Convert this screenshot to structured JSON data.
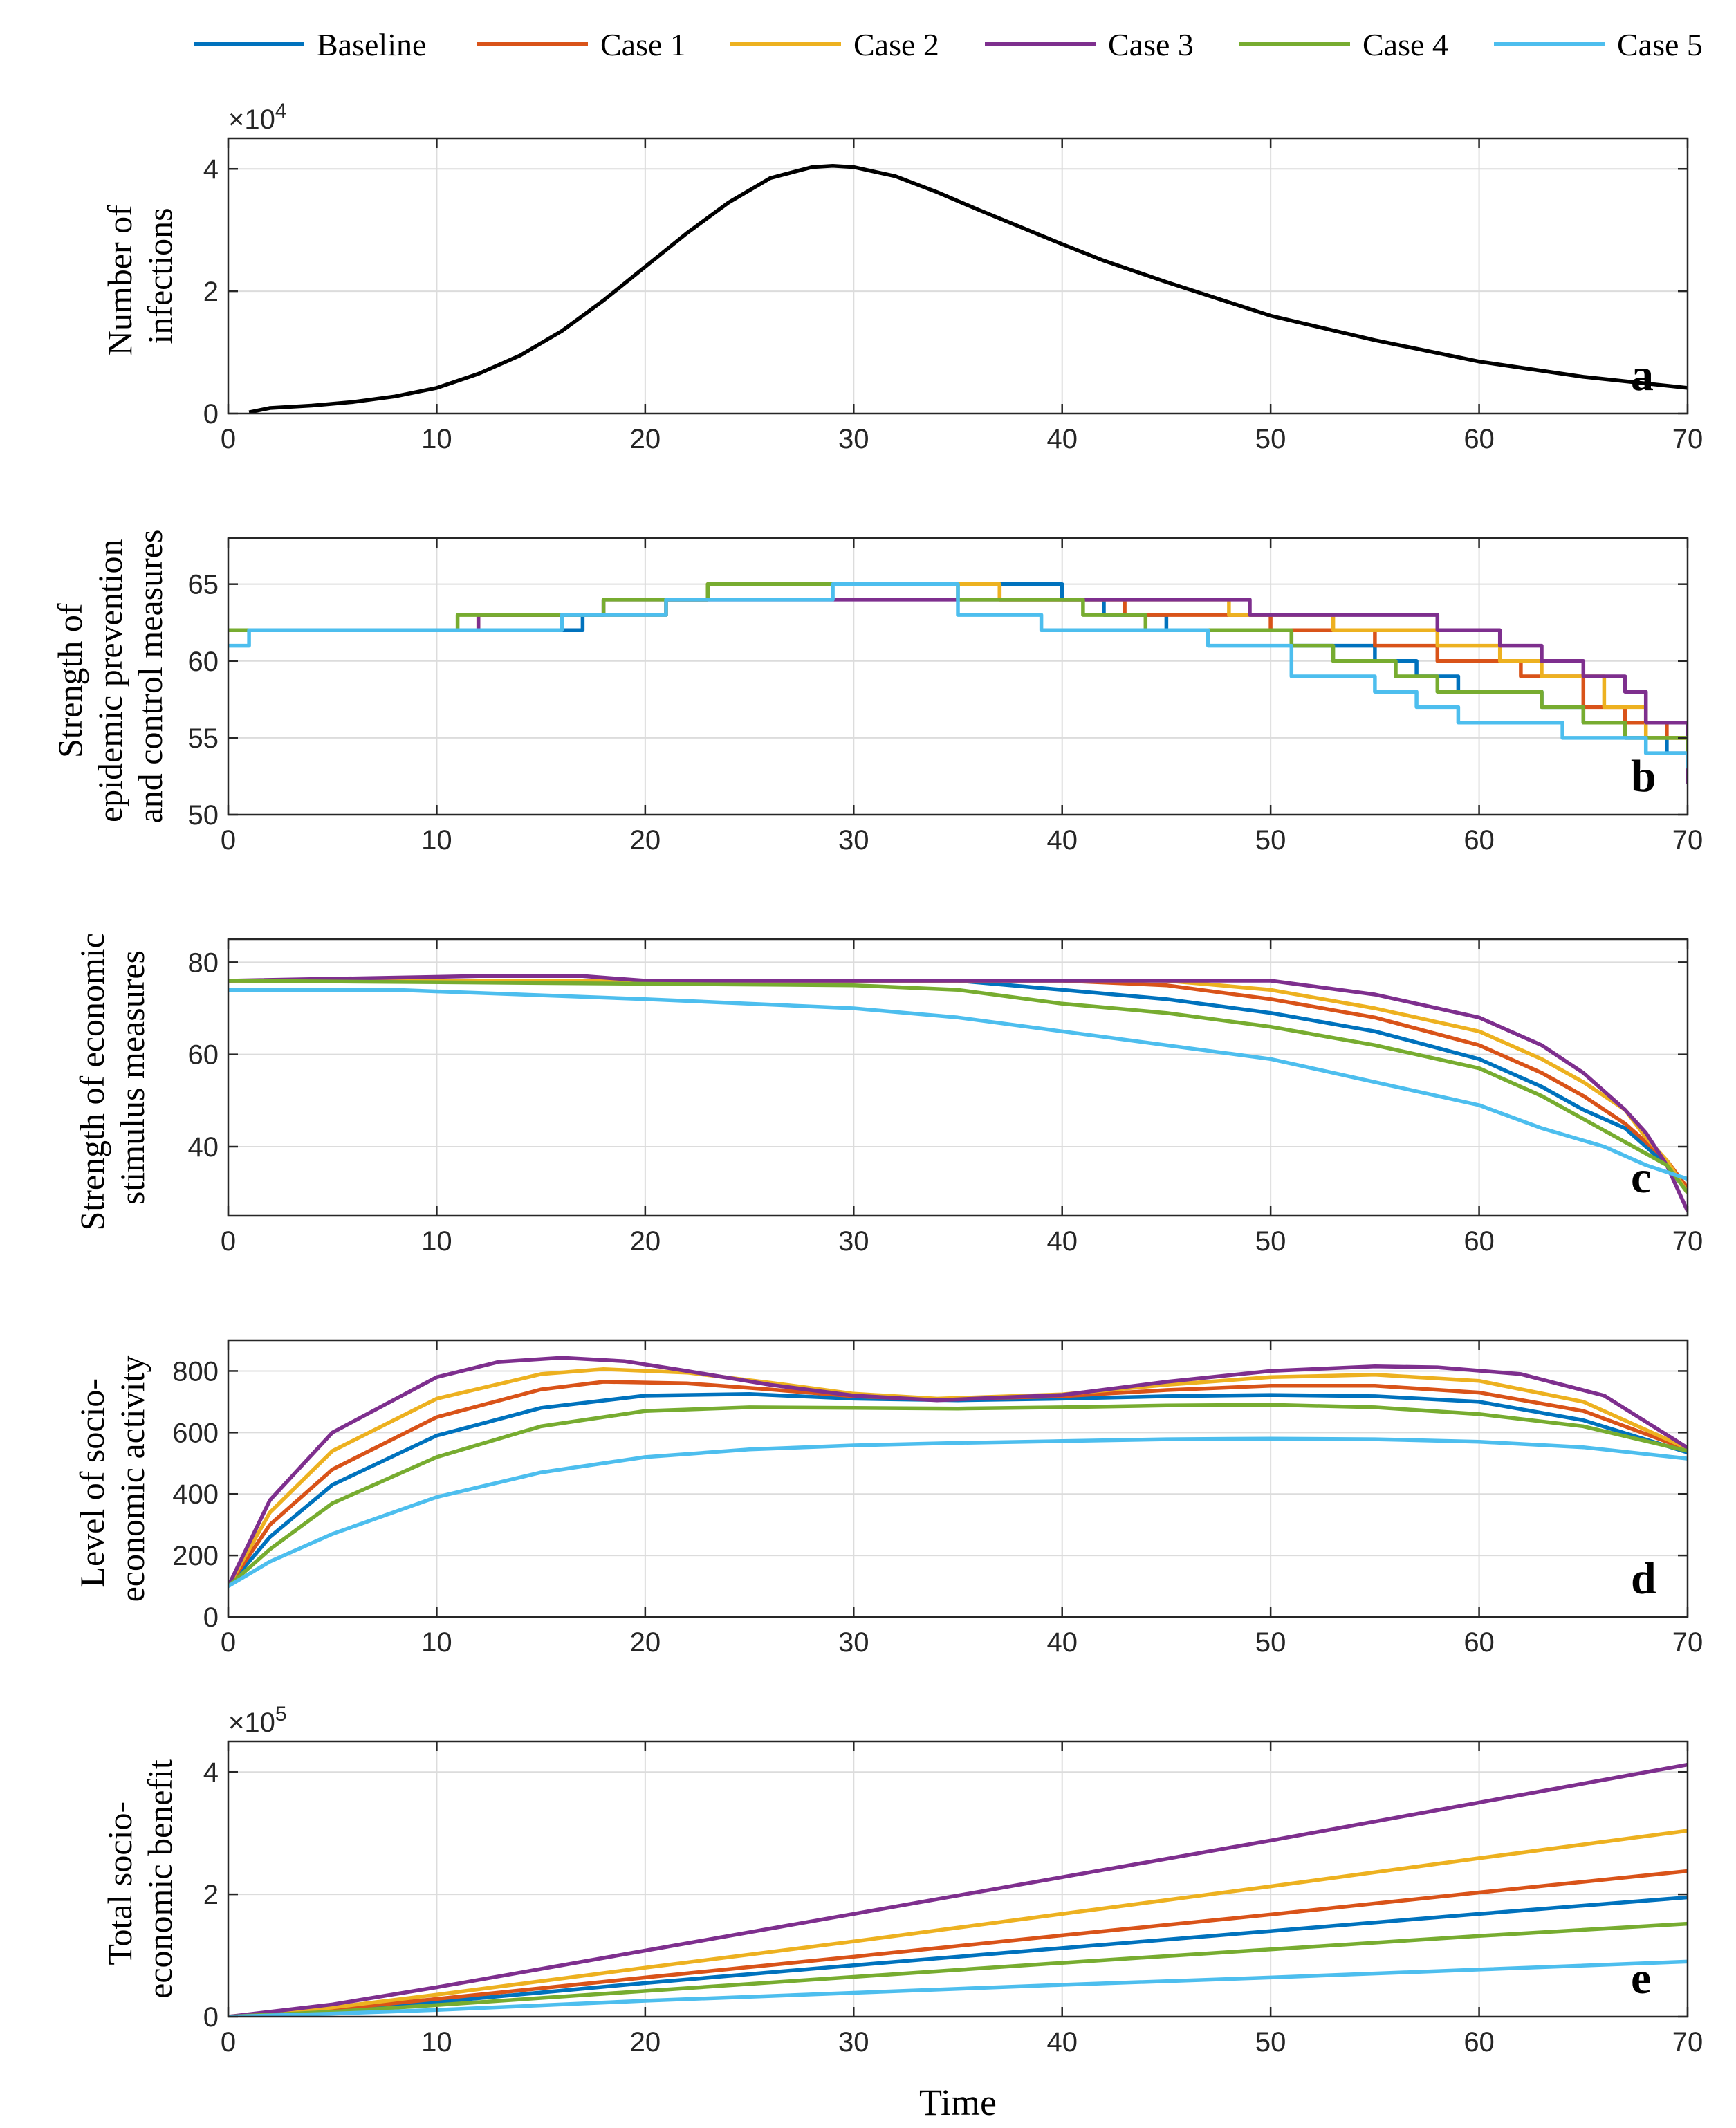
{
  "legend": {
    "entries": [
      {
        "label": "Baseline",
        "color": "#0072BD"
      },
      {
        "label": "Case 1",
        "color": "#D95319"
      },
      {
        "label": "Case 2",
        "color": "#EDB120"
      },
      {
        "label": "Case 3",
        "color": "#7E2F8E"
      },
      {
        "label": "Case 4",
        "color": "#77AC30"
      },
      {
        "label": "Case 5",
        "color": "#4DBEEE"
      }
    ]
  },
  "xlabel": "Time",
  "chart_data": [
    {
      "type": "line",
      "panel_letter": "a",
      "ylabel_lines": [
        "Number of",
        "infections"
      ],
      "exponent_base": "×10",
      "exponent_power": "4",
      "xlim": [
        0,
        70
      ],
      "ylim": [
        0,
        4.5
      ],
      "xticks": [
        0,
        10,
        20,
        30,
        40,
        50,
        60,
        70
      ],
      "yticks": [
        0,
        2,
        4
      ],
      "grid": true,
      "series": [
        {
          "name": "Infections",
          "color": "#000000",
          "x": [
            1,
            2,
            4,
            6,
            8,
            10,
            12,
            14,
            16,
            18,
            20,
            22,
            24,
            26,
            28,
            29,
            30,
            32,
            34,
            36,
            38,
            40,
            42,
            45,
            50,
            55,
            60,
            65,
            70
          ],
          "y": [
            0.02,
            0.09,
            0.13,
            0.19,
            0.28,
            0.42,
            0.65,
            0.95,
            1.35,
            1.85,
            2.4,
            2.95,
            3.45,
            3.85,
            4.03,
            4.05,
            4.03,
            3.88,
            3.62,
            3.33,
            3.05,
            2.77,
            2.5,
            2.15,
            1.6,
            1.2,
            0.85,
            0.6,
            0.42
          ]
        }
      ]
    },
    {
      "type": "line",
      "panel_letter": "b",
      "ylabel_lines": [
        "Strength of",
        "epidemic prevention",
        "and control measures"
      ],
      "xlim": [
        0,
        70
      ],
      "ylim": [
        50,
        68
      ],
      "xticks": [
        0,
        10,
        20,
        30,
        40,
        50,
        60,
        70
      ],
      "yticks": [
        50,
        55,
        60,
        65
      ],
      "grid": true,
      "step": true,
      "series": [
        {
          "name": "Baseline",
          "x": [
            0,
            11,
            17,
            21,
            23,
            38,
            40,
            42,
            45,
            49,
            51,
            55,
            57,
            59,
            61,
            63,
            65,
            67,
            69,
            70
          ],
          "y": [
            62,
            62,
            63,
            64,
            65,
            65,
            64,
            63,
            62,
            62,
            61,
            60,
            59,
            58,
            58,
            57,
            56,
            55,
            54,
            53
          ]
        },
        {
          "name": "Case 1",
          "x": [
            0,
            12,
            17,
            21,
            23,
            37,
            40,
            43,
            47,
            50,
            52,
            55,
            58,
            60,
            62,
            65,
            67,
            69,
            70
          ],
          "y": [
            62,
            63,
            63,
            64,
            65,
            64,
            64,
            63,
            63,
            62,
            62,
            61,
            60,
            60,
            59,
            57,
            56,
            55,
            53
          ]
        },
        {
          "name": "Case 2",
          "x": [
            0,
            12,
            17,
            21,
            23,
            37,
            43,
            48,
            51,
            53,
            55,
            58,
            61,
            63,
            66,
            68,
            70
          ],
          "y": [
            62,
            63,
            63,
            64,
            65,
            64,
            64,
            63,
            63,
            62,
            62,
            61,
            60,
            59,
            57,
            55,
            52
          ]
        },
        {
          "name": "Case 3",
          "x": [
            0,
            12,
            18,
            21,
            23,
            35,
            47,
            49,
            55,
            58,
            61,
            63,
            65,
            67,
            68,
            70
          ],
          "y": [
            62,
            63,
            64,
            64,
            64,
            64,
            64,
            63,
            63,
            62,
            61,
            60,
            59,
            58,
            56,
            52
          ]
        },
        {
          "name": "Case 4",
          "x": [
            0,
            11,
            18,
            21,
            23,
            35,
            40,
            41,
            44,
            48,
            51,
            53,
            56,
            58,
            60,
            63,
            65,
            67,
            70
          ],
          "y": [
            62,
            63,
            64,
            64,
            65,
            64,
            64,
            63,
            62,
            62,
            61,
            60,
            59,
            58,
            58,
            57,
            56,
            55,
            54
          ]
        },
        {
          "name": "Case 5",
          "x": [
            0,
            1,
            15,
            16,
            20,
            21,
            27,
            29,
            35,
            39,
            43,
            47,
            51,
            55,
            57,
            59,
            61,
            64,
            66,
            68,
            70
          ],
          "y": [
            61,
            62,
            62,
            63,
            63,
            64,
            64,
            65,
            63,
            62,
            62,
            61,
            59,
            58,
            57,
            56,
            56,
            55,
            55,
            54,
            53
          ]
        }
      ]
    },
    {
      "type": "line",
      "panel_letter": "c",
      "ylabel_lines": [
        "Strength of economic",
        "stimulus measures"
      ],
      "xlim": [
        0,
        70
      ],
      "ylim": [
        25,
        85
      ],
      "xticks": [
        0,
        10,
        20,
        30,
        40,
        50,
        60,
        70
      ],
      "yticks": [
        40,
        60,
        80
      ],
      "grid": true,
      "series": [
        {
          "name": "Baseline",
          "x": [
            0,
            35,
            40,
            45,
            50,
            55,
            60,
            63,
            65,
            67,
            68,
            69,
            70
          ],
          "y": [
            76,
            76,
            74,
            72,
            69,
            65,
            59,
            53,
            48,
            44,
            40,
            36,
            31
          ]
        },
        {
          "name": "Case 1",
          "x": [
            0,
            40,
            45,
            50,
            55,
            60,
            63,
            65,
            67,
            68,
            69,
            70
          ],
          "y": [
            76,
            76,
            75,
            72,
            68,
            62,
            56,
            51,
            45,
            41,
            37,
            31
          ]
        },
        {
          "name": "Case 2",
          "x": [
            0,
            45,
            50,
            55,
            60,
            63,
            65,
            67,
            68,
            69,
            70
          ],
          "y": [
            76,
            76,
            74,
            70,
            65,
            59,
            54,
            48,
            42,
            37,
            30
          ]
        },
        {
          "name": "Case 3",
          "x": [
            0,
            12,
            17,
            20,
            50,
            55,
            60,
            63,
            65,
            67,
            68,
            69,
            70
          ],
          "y": [
            76,
            77,
            77,
            76,
            76,
            73,
            68,
            62,
            56,
            48,
            43,
            36,
            26
          ]
        },
        {
          "name": "Case 4",
          "x": [
            0,
            30,
            35,
            40,
            45,
            50,
            55,
            60,
            63,
            65,
            67,
            69,
            70
          ],
          "y": [
            76,
            75,
            74,
            71,
            69,
            66,
            62,
            57,
            51,
            46,
            41,
            36,
            30
          ]
        },
        {
          "name": "Case 5",
          "x": [
            0,
            8,
            20,
            30,
            35,
            40,
            45,
            50,
            55,
            60,
            63,
            66,
            68,
            70
          ],
          "y": [
            74,
            74,
            72,
            70,
            68,
            65,
            62,
            59,
            54,
            49,
            44,
            40,
            36,
            33
          ]
        }
      ]
    },
    {
      "type": "line",
      "panel_letter": "d",
      "ylabel_lines": [
        "Level of  socio-",
        "economic activity"
      ],
      "xlim": [
        0,
        70
      ],
      "ylim": [
        0,
        900
      ],
      "xticks": [
        0,
        10,
        20,
        30,
        40,
        50,
        60,
        70
      ],
      "yticks": [
        0,
        200,
        400,
        600,
        800
      ],
      "grid": true,
      "series": [
        {
          "name": "Baseline",
          "x": [
            0,
            2,
            5,
            10,
            15,
            20,
            25,
            30,
            35,
            40,
            45,
            50,
            55,
            60,
            65,
            70
          ],
          "y": [
            100,
            260,
            430,
            590,
            680,
            720,
            725,
            710,
            705,
            710,
            718,
            722,
            718,
            700,
            640,
            535
          ]
        },
        {
          "name": "Case 1",
          "x": [
            0,
            2,
            5,
            10,
            15,
            18,
            22,
            26,
            30,
            34,
            40,
            45,
            50,
            55,
            60,
            65,
            70
          ],
          "y": [
            100,
            300,
            480,
            650,
            740,
            765,
            760,
            740,
            718,
            708,
            718,
            738,
            752,
            752,
            730,
            670,
            545
          ]
        },
        {
          "name": "Case 2",
          "x": [
            0,
            2,
            5,
            10,
            15,
            18,
            22,
            26,
            30,
            34,
            40,
            45,
            50,
            55,
            60,
            65,
            70
          ],
          "y": [
            100,
            340,
            540,
            710,
            790,
            806,
            795,
            762,
            726,
            710,
            724,
            755,
            780,
            788,
            768,
            700,
            548
          ]
        },
        {
          "name": "Case 3",
          "x": [
            0,
            2,
            5,
            10,
            13,
            16,
            19,
            22,
            26,
            30,
            34,
            40,
            45,
            50,
            55,
            58,
            62,
            66,
            70
          ],
          "y": [
            100,
            380,
            600,
            780,
            830,
            843,
            832,
            800,
            755,
            720,
            705,
            722,
            765,
            800,
            815,
            812,
            790,
            720,
            550
          ]
        },
        {
          "name": "Case 4",
          "x": [
            0,
            2,
            5,
            10,
            15,
            20,
            25,
            30,
            35,
            40,
            45,
            50,
            55,
            60,
            65,
            70
          ],
          "y": [
            100,
            220,
            370,
            520,
            620,
            670,
            682,
            680,
            678,
            682,
            688,
            690,
            682,
            660,
            620,
            540
          ]
        },
        {
          "name": "Case 5",
          "x": [
            0,
            2,
            5,
            10,
            15,
            20,
            25,
            30,
            35,
            40,
            45,
            50,
            55,
            60,
            65,
            70
          ],
          "y": [
            100,
            180,
            270,
            390,
            470,
            520,
            545,
            558,
            566,
            572,
            578,
            580,
            578,
            570,
            552,
            515
          ]
        }
      ]
    },
    {
      "type": "line",
      "panel_letter": "e",
      "ylabel_lines": [
        "Total socio-",
        "economic benefit"
      ],
      "exponent_base": "×10",
      "exponent_power": "5",
      "xlim": [
        0,
        70
      ],
      "ylim": [
        0,
        4.5
      ],
      "xticks": [
        0,
        10,
        20,
        30,
        40,
        50,
        60,
        70
      ],
      "yticks": [
        0,
        2,
        4
      ],
      "grid": true,
      "series": [
        {
          "name": "Baseline",
          "x": [
            0,
            5,
            10,
            20,
            30,
            40,
            50,
            60,
            70
          ],
          "y": [
            0,
            0.1,
            0.24,
            0.55,
            0.84,
            1.12,
            1.4,
            1.68,
            1.95
          ]
        },
        {
          "name": "Case 1",
          "x": [
            0,
            5,
            10,
            20,
            30,
            40,
            50,
            60,
            70
          ],
          "y": [
            0,
            0.12,
            0.29,
            0.64,
            0.98,
            1.33,
            1.67,
            2.03,
            2.38
          ]
        },
        {
          "name": "Case 2",
          "x": [
            0,
            5,
            10,
            20,
            30,
            40,
            50,
            60,
            70
          ],
          "y": [
            0,
            0.15,
            0.36,
            0.8,
            1.23,
            1.68,
            2.13,
            2.59,
            3.04
          ]
        },
        {
          "name": "Case 3",
          "x": [
            0,
            5,
            10,
            20,
            30,
            40,
            50,
            60,
            70
          ],
          "y": [
            0,
            0.2,
            0.48,
            1.08,
            1.68,
            2.28,
            2.88,
            3.5,
            4.12
          ]
        },
        {
          "name": "Case 4",
          "x": [
            0,
            5,
            10,
            20,
            30,
            40,
            50,
            60,
            70
          ],
          "y": [
            0,
            0.08,
            0.19,
            0.42,
            0.65,
            0.88,
            1.1,
            1.32,
            1.52
          ]
        },
        {
          "name": "Case 5",
          "x": [
            0,
            5,
            10,
            20,
            30,
            40,
            50,
            60,
            70
          ],
          "y": [
            0,
            0.05,
            0.11,
            0.26,
            0.39,
            0.52,
            0.64,
            0.77,
            0.9
          ]
        }
      ]
    }
  ]
}
